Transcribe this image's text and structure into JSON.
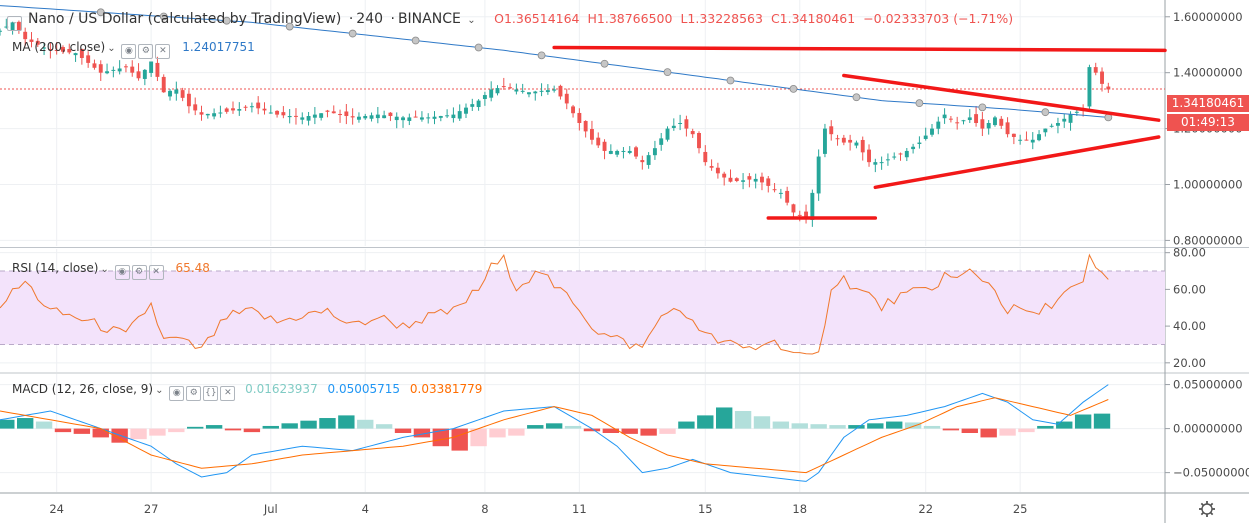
{
  "header": {
    "title": "Nano / US Dollar (calculated by TradingView)",
    "interval": "240",
    "exchange": "BINANCE",
    "open": "O1.36514164",
    "high": "H1.38766500",
    "low": "L1.33228563",
    "close": "C1.34180461",
    "change": "−0.02333703 (−1.71%)"
  },
  "ma": {
    "label": "MA (200, close)",
    "value": "1.24017751"
  },
  "price_tag": {
    "price": "1.34180461",
    "countdown": "01:49:13"
  },
  "rsi": {
    "label": "RSI (14, close)",
    "value": "65.48"
  },
  "macd": {
    "label": "MACD (12, 26, close, 9)",
    "hist": "0.01623937",
    "macd": "0.05005715",
    "signal": "0.03381779"
  },
  "colors": {
    "up": "#26a69a",
    "down": "#ef5350",
    "ma": "#2f79c7",
    "rsi": "#f0782d",
    "macd": "#2196f3",
    "signal": "#ff6d00",
    "trend": "#f21818",
    "tag_close": "#ef5350",
    "rsi_band": "#f3e3fb"
  },
  "chart_data": [
    {
      "type": "candlestick",
      "title": "Nano / US Dollar (calculated by TradingView)",
      "x_ticks": [
        "24",
        "27",
        "Jul",
        "4",
        "8",
        "11",
        "15",
        "18",
        "22",
        "25"
      ],
      "y_ticks": [
        "1.60000000",
        "1.40000000",
        "1.20000000",
        "1.00000000",
        "0.80000000"
      ],
      "ylim": [
        0.78,
        1.66
      ],
      "close_path": [
        [
          0,
          1.55
        ],
        [
          2,
          1.58
        ],
        [
          4,
          1.52
        ],
        [
          8,
          1.48
        ],
        [
          12,
          1.47
        ],
        [
          16,
          1.4
        ],
        [
          20,
          1.42
        ],
        [
          22,
          1.38
        ],
        [
          24,
          1.44
        ],
        [
          26,
          1.33
        ],
        [
          28,
          1.34
        ],
        [
          30,
          1.28
        ],
        [
          32,
          1.25
        ],
        [
          36,
          1.26
        ],
        [
          40,
          1.28
        ],
        [
          44,
          1.25
        ],
        [
          48,
          1.24
        ],
        [
          52,
          1.26
        ],
        [
          56,
          1.24
        ],
        [
          60,
          1.25
        ],
        [
          64,
          1.24
        ],
        [
          68,
          1.24
        ],
        [
          72,
          1.25
        ],
        [
          76,
          1.3
        ],
        [
          78,
          1.34
        ],
        [
          80,
          1.35
        ],
        [
          84,
          1.33
        ],
        [
          88,
          1.34
        ],
        [
          90,
          1.29
        ],
        [
          92,
          1.22
        ],
        [
          94,
          1.16
        ],
        [
          96,
          1.12
        ],
        [
          100,
          1.12
        ],
        [
          102,
          1.08
        ],
        [
          104,
          1.13
        ],
        [
          106,
          1.2
        ],
        [
          108,
          1.22
        ],
        [
          110,
          1.18
        ],
        [
          112,
          1.08
        ],
        [
          114,
          1.04
        ],
        [
          116,
          1.01
        ],
        [
          120,
          1.02
        ],
        [
          124,
          0.97
        ],
        [
          126,
          0.9
        ],
        [
          128,
          0.88
        ],
        [
          129,
          0.97
        ],
        [
          130,
          1.1
        ],
        [
          131,
          1.2
        ],
        [
          132,
          1.18
        ],
        [
          134,
          1.15
        ],
        [
          136,
          1.15
        ],
        [
          138,
          1.08
        ],
        [
          140,
          1.08
        ],
        [
          142,
          1.1
        ],
        [
          144,
          1.12
        ],
        [
          146,
          1.15
        ],
        [
          148,
          1.2
        ],
        [
          150,
          1.25
        ],
        [
          152,
          1.22
        ],
        [
          154,
          1.24
        ],
        [
          156,
          1.2
        ],
        [
          158,
          1.24
        ],
        [
          160,
          1.18
        ],
        [
          162,
          1.16
        ],
        [
          164,
          1.16
        ],
        [
          166,
          1.2
        ],
        [
          168,
          1.22
        ],
        [
          170,
          1.25
        ],
        [
          172,
          1.27
        ],
        [
          173,
          1.42
        ],
        [
          174,
          1.4
        ],
        [
          175,
          1.36
        ],
        [
          176,
          1.34
        ]
      ],
      "ma200_path": [
        [
          0,
          1.64
        ],
        [
          40,
          1.58
        ],
        [
          80,
          1.48
        ],
        [
          120,
          1.36
        ],
        [
          140,
          1.3
        ],
        [
          160,
          1.27
        ],
        [
          176,
          1.24
        ]
      ],
      "trendlines": [
        {
          "from": [
            88,
            1.49
          ],
          "to": [
            185,
            1.48
          ]
        },
        {
          "from": [
            134,
            1.39
          ],
          "to": [
            184,
            1.23
          ]
        },
        {
          "from": [
            139,
            0.99
          ],
          "to": [
            184,
            1.17
          ]
        },
        {
          "from": [
            122,
            0.88
          ],
          "to": [
            139,
            0.88
          ]
        }
      ]
    },
    {
      "type": "line",
      "title": "RSI (14, close)",
      "y_ticks": [
        "80.00",
        "60.00",
        "40.00",
        "20.00"
      ],
      "ylim": [
        15,
        82
      ],
      "band": [
        30,
        70
      ],
      "path": [
        [
          0,
          52
        ],
        [
          4,
          64
        ],
        [
          8,
          48
        ],
        [
          12,
          45
        ],
        [
          16,
          40
        ],
        [
          20,
          35
        ],
        [
          24,
          52
        ],
        [
          26,
          32
        ],
        [
          28,
          33
        ],
        [
          30,
          30
        ],
        [
          32,
          27
        ],
        [
          36,
          45
        ],
        [
          40,
          48
        ],
        [
          44,
          42
        ],
        [
          48,
          46
        ],
        [
          52,
          48
        ],
        [
          56,
          40
        ],
        [
          60,
          45
        ],
        [
          64,
          40
        ],
        [
          68,
          45
        ],
        [
          72,
          48
        ],
        [
          76,
          60
        ],
        [
          78,
          72
        ],
        [
          80,
          76
        ],
        [
          82,
          62
        ],
        [
          84,
          66
        ],
        [
          86,
          70
        ],
        [
          88,
          60
        ],
        [
          90,
          58
        ],
        [
          92,
          50
        ],
        [
          94,
          40
        ],
        [
          96,
          35
        ],
        [
          98,
          33
        ],
        [
          100,
          30
        ],
        [
          102,
          28
        ],
        [
          104,
          40
        ],
        [
          106,
          50
        ],
        [
          108,
          46
        ],
        [
          110,
          44
        ],
        [
          112,
          35
        ],
        [
          114,
          32
        ],
        [
          116,
          30
        ],
        [
          118,
          28
        ],
        [
          120,
          28
        ],
        [
          122,
          32
        ],
        [
          124,
          30
        ],
        [
          126,
          25
        ],
        [
          128,
          22
        ],
        [
          130,
          24
        ],
        [
          132,
          62
        ],
        [
          134,
          66
        ],
        [
          136,
          60
        ],
        [
          138,
          57
        ],
        [
          140,
          50
        ],
        [
          142,
          55
        ],
        [
          144,
          57
        ],
        [
          146,
          59
        ],
        [
          148,
          60
        ],
        [
          150,
          68
        ],
        [
          152,
          65
        ],
        [
          154,
          70
        ],
        [
          156,
          66
        ],
        [
          158,
          60
        ],
        [
          160,
          48
        ],
        [
          162,
          50
        ],
        [
          164,
          45
        ],
        [
          166,
          50
        ],
        [
          168,
          55
        ],
        [
          170,
          60
        ],
        [
          172,
          62
        ],
        [
          173,
          77
        ],
        [
          174,
          72
        ],
        [
          175,
          67
        ],
        [
          176,
          65
        ]
      ]
    },
    {
      "type": "bar+line",
      "title": "MACD (12, 26, close, 9)",
      "y_ticks": [
        "0.05000000",
        "0.00000000",
        "−0.05000000"
      ],
      "ylim": [
        -0.072,
        0.062
      ],
      "macd_path": [
        [
          0,
          0.01
        ],
        [
          8,
          0.02
        ],
        [
          16,
          0.0
        ],
        [
          24,
          -0.02
        ],
        [
          28,
          -0.04
        ],
        [
          32,
          -0.055
        ],
        [
          36,
          -0.05
        ],
        [
          40,
          -0.03
        ],
        [
          44,
          -0.025
        ],
        [
          48,
          -0.02
        ],
        [
          56,
          -0.025
        ],
        [
          64,
          -0.01
        ],
        [
          72,
          0.0
        ],
        [
          80,
          0.02
        ],
        [
          88,
          0.025
        ],
        [
          94,
          0.0
        ],
        [
          98,
          -0.02
        ],
        [
          102,
          -0.05
        ],
        [
          106,
          -0.045
        ],
        [
          110,
          -0.035
        ],
        [
          116,
          -0.05
        ],
        [
          122,
          -0.055
        ],
        [
          128,
          -0.06
        ],
        [
          130,
          -0.05
        ],
        [
          134,
          -0.01
        ],
        [
          138,
          0.01
        ],
        [
          144,
          0.015
        ],
        [
          150,
          0.025
        ],
        [
          156,
          0.04
        ],
        [
          160,
          0.03
        ],
        [
          164,
          0.01
        ],
        [
          168,
          0.005
        ],
        [
          172,
          0.03
        ],
        [
          176,
          0.05
        ]
      ],
      "signal_path": [
        [
          0,
          0.02
        ],
        [
          8,
          0.01
        ],
        [
          16,
          0.0
        ],
        [
          24,
          -0.03
        ],
        [
          32,
          -0.045
        ],
        [
          40,
          -0.04
        ],
        [
          48,
          -0.03
        ],
        [
          56,
          -0.025
        ],
        [
          64,
          -0.02
        ],
        [
          72,
          -0.01
        ],
        [
          80,
          0.01
        ],
        [
          88,
          0.025
        ],
        [
          94,
          0.015
        ],
        [
          100,
          -0.01
        ],
        [
          106,
          -0.03
        ],
        [
          112,
          -0.04
        ],
        [
          120,
          -0.045
        ],
        [
          128,
          -0.05
        ],
        [
          134,
          -0.03
        ],
        [
          140,
          -0.01
        ],
        [
          146,
          0.005
        ],
        [
          152,
          0.025
        ],
        [
          158,
          0.035
        ],
        [
          164,
          0.025
        ],
        [
          170,
          0.015
        ],
        [
          176,
          0.033
        ]
      ],
      "histogram": [
        0.01,
        0.012,
        0.008,
        -0.004,
        -0.006,
        -0.01,
        -0.016,
        -0.012,
        -0.008,
        -0.004,
        0.002,
        0.004,
        -0.002,
        -0.004,
        0.003,
        0.006,
        0.009,
        0.012,
        0.015,
        0.01,
        0.005,
        -0.005,
        -0.01,
        -0.02,
        -0.025,
        -0.02,
        -0.01,
        -0.008,
        0.004,
        0.006,
        0.003,
        -0.003,
        -0.005,
        -0.006,
        -0.008,
        -0.006,
        0.008,
        0.015,
        0.024,
        0.02,
        0.014,
        0.008,
        0.006,
        0.005,
        0.004,
        0.004,
        0.006,
        0.008,
        0.007,
        0.003,
        -0.002,
        -0.005,
        -0.01,
        -0.008,
        -0.004,
        0.003,
        0.008,
        0.016,
        0.017
      ]
    }
  ]
}
